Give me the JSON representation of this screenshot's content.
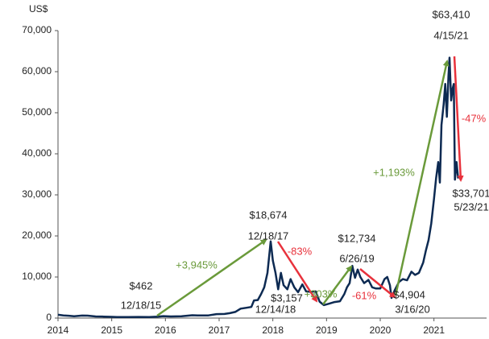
{
  "chart_data": {
    "type": "line",
    "ylabel": "US$",
    "xlim": [
      2014,
      2021.98
    ],
    "xticks": [
      2014,
      2015,
      2016,
      2017,
      2018,
      2019,
      2020,
      2021
    ],
    "ylim": [
      0,
      70000
    ],
    "yticks": [
      0,
      {
        "value": 10000,
        "label": "10,000"
      },
      {
        "value": 20000,
        "label": "20,000"
      },
      {
        "value": 30000,
        "label": "30,000"
      },
      {
        "value": 40000,
        "label": "40,000"
      },
      {
        "value": 50000,
        "label": "50,000"
      },
      {
        "value": 60000,
        "label": "60,000"
      },
      {
        "value": 70000,
        "label": "70,000"
      }
    ],
    "series": [
      {
        "color": "#0d2a52",
        "x": [
          2014.0,
          2014.1,
          2014.2,
          2014.3,
          2014.45,
          2014.55,
          2014.7,
          2014.85,
          2015.0,
          2015.1,
          2015.3,
          2015.5,
          2015.7,
          2015.85,
          2015.96,
          2016.1,
          2016.3,
          2016.5,
          2016.6,
          2016.8,
          2016.95,
          2017.1,
          2017.2,
          2017.3,
          2017.4,
          2017.5,
          2017.6,
          2017.65,
          2017.72,
          2017.78,
          2017.84,
          2017.9,
          2017.96,
          2018.0,
          2018.05,
          2018.1,
          2018.15,
          2018.2,
          2018.27,
          2018.33,
          2018.4,
          2018.47,
          2018.55,
          2018.62,
          2018.7,
          2018.8,
          2018.87,
          2018.95,
          2019.05,
          2019.15,
          2019.25,
          2019.33,
          2019.38,
          2019.43,
          2019.48,
          2019.53,
          2019.58,
          2019.63,
          2019.7,
          2019.78,
          2019.85,
          2019.92,
          2020.0,
          2020.08,
          2020.13,
          2020.18,
          2020.21,
          2020.27,
          2020.35,
          2020.42,
          2020.5,
          2020.58,
          2020.65,
          2020.72,
          2020.8,
          2020.85,
          2020.9,
          2020.95,
          2021.0,
          2021.04,
          2021.08,
          2021.11,
          2021.14,
          2021.18,
          2021.21,
          2021.24,
          2021.27,
          2021.29,
          2021.32,
          2021.35,
          2021.37,
          2021.39,
          2021.42,
          2021.45
        ],
        "values": [
          800,
          620,
          560,
          450,
          600,
          580,
          400,
          360,
          300,
          230,
          240,
          270,
          240,
          330,
          462,
          400,
          440,
          680,
          620,
          640,
          960,
          1000,
          1200,
          1500,
          2300,
          2500,
          2700,
          4300,
          4400,
          5800,
          7500,
          11000,
          18674,
          14000,
          11000,
          7000,
          11000,
          8000,
          7000,
          9500,
          7500,
          6300,
          8200,
          6500,
          6400,
          6500,
          4000,
          3157,
          3500,
          3900,
          4100,
          5800,
          7500,
          8500,
          12734,
          9800,
          11800,
          10000,
          8500,
          9300,
          7500,
          7200,
          7200,
          9500,
          10000,
          8000,
          4904,
          6800,
          8800,
          9500,
          9200,
          11300,
          10500,
          11000,
          13500,
          16500,
          19000,
          23000,
          29000,
          34000,
          38000,
          33000,
          47000,
          52000,
          57000,
          49000,
          59000,
          63410,
          53000,
          56000,
          57000,
          33701,
          38000,
          34000
        ]
      }
    ],
    "annotations": [
      {
        "label": "$462",
        "date": "12/18/15"
      },
      {
        "label": "$18,674",
        "date": "12/18/17"
      },
      {
        "label": "$3,157",
        "date": "12/14/18"
      },
      {
        "label": "$12,734",
        "date": "6/26/19"
      },
      {
        "label": "$4,904",
        "date": "3/16/20"
      },
      {
        "label": "$63,410",
        "date": "4/15/21"
      },
      {
        "label": "$33,701",
        "date": "5/23/21"
      }
    ],
    "changes": [
      {
        "text": "+3,945%",
        "color": "#6a9a3a"
      },
      {
        "text": "-83%",
        "color": "#e8323c"
      },
      {
        "text": "+303%",
        "color": "#6a9a3a"
      },
      {
        "text": "-61%",
        "color": "#e8323c"
      },
      {
        "text": "+1,193%",
        "color": "#6a9a3a"
      },
      {
        "text": "-47%",
        "color": "#e8323c"
      }
    ]
  }
}
